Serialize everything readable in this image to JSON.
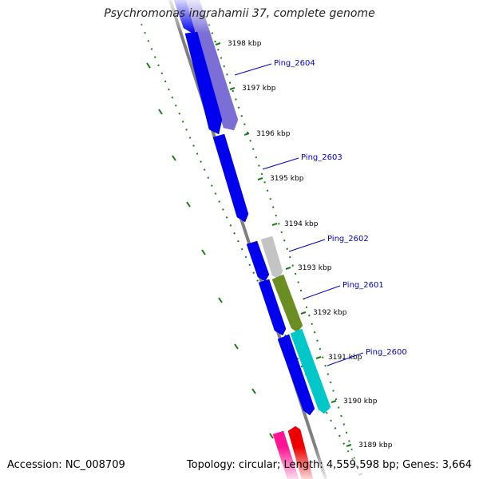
{
  "title": "Psychromonas ingrahamii 37, complete genome",
  "accession_label": "Accession: NC_008709",
  "summary_label": "Topology: circular; Length: 4,559,598 bp; Genes: 3,664",
  "ticks": [
    {
      "label": "3198 kbp"
    },
    {
      "label": "3197 kbp"
    },
    {
      "label": "3196 kbp"
    },
    {
      "label": "3195 kbp"
    },
    {
      "label": "3194 kbp"
    },
    {
      "label": "3193 kbp"
    },
    {
      "label": "3192 kbp"
    },
    {
      "label": "3191 kbp"
    },
    {
      "label": "3190 kbp"
    },
    {
      "label": "3189 kbp"
    }
  ],
  "gene_labels": [
    {
      "name": "Ping_2604"
    },
    {
      "name": "Ping_2603"
    },
    {
      "name": "Ping_2602"
    },
    {
      "name": "Ping_2601"
    },
    {
      "name": "Ping_2600"
    }
  ],
  "colors": {
    "backbone": "#7f7f7f",
    "cds": "#0000ee",
    "purple": "#7b6fd6",
    "gray": "#c4c4c4",
    "olive": "#6b8e23",
    "cyan": "#00c8c8",
    "magenta": "#ff1493",
    "red": "#ee0000",
    "tick_dots": "#1a7a1a",
    "label_line": "#0000cc"
  }
}
